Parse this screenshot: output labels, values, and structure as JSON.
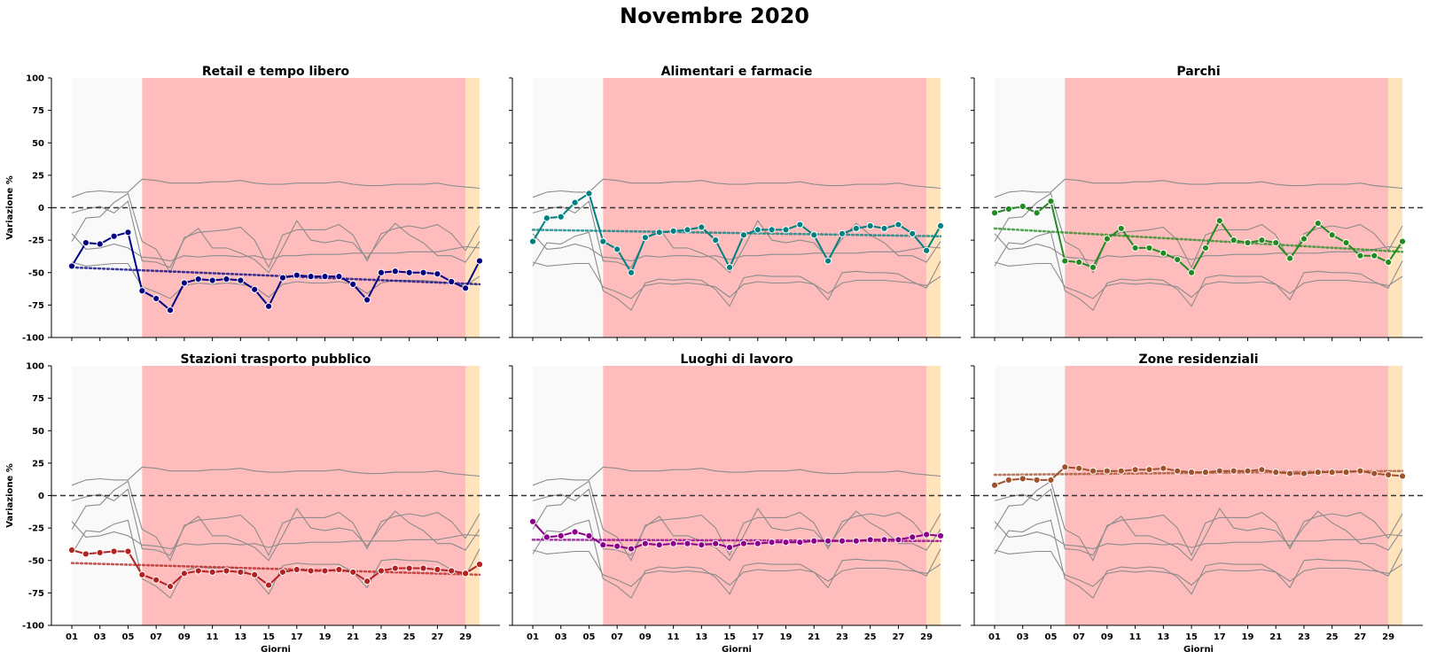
{
  "title": "Novembre 2020",
  "shared_ylabel": "Variazione %",
  "shared_xlabel": "Giorni",
  "colors": {
    "background_band": "#f9f9f9",
    "red_band": "#ffbcbc",
    "orange_band": "#ffe3bd",
    "context_lines": "#8c8c8c",
    "zero_line": "#333333"
  },
  "chart_data": [
    {
      "type": "line",
      "title": "Retail e tempo libero",
      "color": "#000080",
      "x": [
        1,
        2,
        3,
        4,
        5,
        6,
        7,
        8,
        9,
        10,
        11,
        12,
        13,
        14,
        15,
        16,
        17,
        18,
        19,
        20,
        21,
        22,
        23,
        24,
        25,
        26,
        27,
        28,
        29,
        30
      ],
      "values": [
        -45,
        -27,
        -28,
        -22,
        -19,
        -64,
        -70,
        -79,
        -58,
        -55,
        -56,
        -55,
        -56,
        -63,
        -76,
        -54,
        -52,
        -53,
        -53,
        -53,
        -59,
        -71,
        -50,
        -49,
        -50,
        -50,
        -51,
        -57,
        -62,
        -41
      ],
      "trend": [
        -46,
        -59
      ],
      "xlim": [
        1,
        30
      ],
      "ylim": [
        -100,
        100
      ],
      "xticks": [
        "01",
        "03",
        "05",
        "07",
        "09",
        "11",
        "13",
        "15",
        "17",
        "19",
        "21",
        "23",
        "25",
        "27",
        "29"
      ],
      "xtick_values": [
        1,
        3,
        5,
        7,
        9,
        11,
        13,
        15,
        17,
        19,
        21,
        23,
        25,
        27,
        29
      ],
      "yticks": [
        100,
        75,
        50,
        25,
        0,
        -25,
        -50,
        -75,
        -100
      ],
      "xlabel": "",
      "ylabel": "Variazione %"
    },
    {
      "type": "line",
      "title": "Alimentari e farmacie",
      "color": "#008080",
      "x": [
        1,
        2,
        3,
        4,
        5,
        6,
        7,
        8,
        9,
        10,
        11,
        12,
        13,
        14,
        15,
        16,
        17,
        18,
        19,
        20,
        21,
        22,
        23,
        24,
        25,
        26,
        27,
        28,
        29,
        30
      ],
      "values": [
        -26,
        -8,
        -7,
        4,
        11,
        -26,
        -32,
        -50,
        -23,
        -19,
        -18,
        -17,
        -15,
        -25,
        -46,
        -21,
        -17,
        -17,
        -17,
        -13,
        -21,
        -41,
        -20,
        -16,
        -14,
        -16,
        -13,
        -20,
        -33,
        -14
      ],
      "trend": [
        -17,
        -22
      ],
      "xlim": [
        1,
        30
      ],
      "ylim": [
        -100,
        100
      ],
      "xticks": [
        "01",
        "03",
        "05",
        "07",
        "09",
        "11",
        "13",
        "15",
        "17",
        "19",
        "21",
        "23",
        "25",
        "27",
        "29"
      ],
      "xtick_values": [
        1,
        3,
        5,
        7,
        9,
        11,
        13,
        15,
        17,
        19,
        21,
        23,
        25,
        27,
        29
      ],
      "yticks": [
        100,
        75,
        50,
        25,
        0,
        -25,
        -50,
        -75,
        -100
      ],
      "xlabel": "",
      "ylabel": ""
    },
    {
      "type": "line",
      "title": "Parchi",
      "color": "#228B22",
      "x": [
        1,
        2,
        3,
        4,
        5,
        6,
        7,
        8,
        9,
        10,
        11,
        12,
        13,
        14,
        15,
        16,
        17,
        18,
        19,
        20,
        21,
        22,
        23,
        24,
        25,
        26,
        27,
        28,
        29,
        30
      ],
      "values": [
        -4,
        -1,
        1,
        -4,
        5,
        -41,
        -42,
        -46,
        -24,
        -16,
        -31,
        -31,
        -35,
        -40,
        -50,
        -31,
        -10,
        -25,
        -27,
        -25,
        -27,
        -39,
        -24,
        -12,
        -21,
        -27,
        -37,
        -37,
        -42,
        -26
      ],
      "trend": [
        -16,
        -34
      ],
      "xlim": [
        1,
        30
      ],
      "ylim": [
        -100,
        100
      ],
      "xticks": [
        "01",
        "03",
        "05",
        "07",
        "09",
        "11",
        "13",
        "15",
        "17",
        "19",
        "21",
        "23",
        "25",
        "27",
        "29"
      ],
      "xtick_values": [
        1,
        3,
        5,
        7,
        9,
        11,
        13,
        15,
        17,
        19,
        21,
        23,
        25,
        27,
        29
      ],
      "yticks": [
        100,
        75,
        50,
        25,
        0,
        -25,
        -50,
        -75,
        -100
      ],
      "xlabel": "",
      "ylabel": ""
    },
    {
      "type": "line",
      "title": "Stazioni trasporto pubblico",
      "color": "#B22222",
      "x": [
        1,
        2,
        3,
        4,
        5,
        6,
        7,
        8,
        9,
        10,
        11,
        12,
        13,
        14,
        15,
        16,
        17,
        18,
        19,
        20,
        21,
        22,
        23,
        24,
        25,
        26,
        27,
        28,
        29,
        30
      ],
      "values": [
        -42,
        -45,
        -44,
        -43,
        -43,
        -61,
        -65,
        -70,
        -60,
        -58,
        -59,
        -58,
        -59,
        -61,
        -69,
        -59,
        -57,
        -58,
        -58,
        -57,
        -59,
        -66,
        -58,
        -56,
        -56,
        -56,
        -57,
        -58,
        -60,
        -53
      ],
      "trend": [
        -52,
        -61
      ],
      "xlim": [
        1,
        30
      ],
      "ylim": [
        -100,
        100
      ],
      "xticks": [
        "01",
        "03",
        "05",
        "07",
        "09",
        "11",
        "13",
        "15",
        "17",
        "19",
        "21",
        "23",
        "25",
        "27",
        "29"
      ],
      "xtick_values": [
        1,
        3,
        5,
        7,
        9,
        11,
        13,
        15,
        17,
        19,
        21,
        23,
        25,
        27,
        29
      ],
      "yticks": [
        100,
        75,
        50,
        25,
        0,
        -25,
        -50,
        -75,
        -100
      ],
      "xlabel": "Giorni",
      "ylabel": "Variazione %"
    },
    {
      "type": "line",
      "title": "Luoghi di lavoro",
      "color": "#8B008B",
      "x": [
        1,
        2,
        3,
        4,
        5,
        6,
        7,
        8,
        9,
        10,
        11,
        12,
        13,
        14,
        15,
        16,
        17,
        18,
        19,
        20,
        21,
        22,
        23,
        24,
        25,
        26,
        27,
        28,
        29,
        30
      ],
      "values": [
        -20,
        -32,
        -31,
        -28,
        -31,
        -38,
        -39,
        -41,
        -37,
        -38,
        -37,
        -37,
        -38,
        -37,
        -40,
        -37,
        -37,
        -36,
        -36,
        -36,
        -35,
        -35,
        -35,
        -35,
        -34,
        -34,
        -34,
        -32,
        -30,
        -31
      ],
      "trend": [
        -34,
        -35
      ],
      "xlim": [
        1,
        30
      ],
      "ylim": [
        -100,
        100
      ],
      "xticks": [
        "01",
        "03",
        "05",
        "07",
        "09",
        "11",
        "13",
        "15",
        "17",
        "19",
        "21",
        "23",
        "25",
        "27",
        "29"
      ],
      "xtick_values": [
        1,
        3,
        5,
        7,
        9,
        11,
        13,
        15,
        17,
        19,
        21,
        23,
        25,
        27,
        29
      ],
      "yticks": [
        100,
        75,
        50,
        25,
        0,
        -25,
        -50,
        -75,
        -100
      ],
      "xlabel": "Giorni",
      "ylabel": ""
    },
    {
      "type": "line",
      "title": "Zone residenziali",
      "color": "#A0522D",
      "x": [
        1,
        2,
        3,
        4,
        5,
        6,
        7,
        8,
        9,
        10,
        11,
        12,
        13,
        14,
        15,
        16,
        17,
        18,
        19,
        20,
        21,
        22,
        23,
        24,
        25,
        26,
        27,
        28,
        29,
        30
      ],
      "values": [
        8,
        12,
        13,
        12,
        12,
        22,
        21,
        19,
        19,
        19,
        20,
        20,
        21,
        19,
        18,
        18,
        19,
        19,
        19,
        20,
        18,
        17,
        17,
        18,
        18,
        18,
        19,
        17,
        16,
        15
      ],
      "trend": [
        16,
        19
      ],
      "xlim": [
        1,
        30
      ],
      "ylim": [
        -100,
        100
      ],
      "xticks": [
        "01",
        "03",
        "05",
        "07",
        "09",
        "11",
        "13",
        "15",
        "17",
        "19",
        "21",
        "23",
        "25",
        "27",
        "29"
      ],
      "xtick_values": [
        1,
        3,
        5,
        7,
        9,
        11,
        13,
        15,
        17,
        19,
        21,
        23,
        25,
        27,
        29
      ],
      "yticks": [
        100,
        75,
        50,
        25,
        0,
        -25,
        -50,
        -75,
        -100
      ],
      "xlabel": "Giorni",
      "ylabel": ""
    }
  ]
}
